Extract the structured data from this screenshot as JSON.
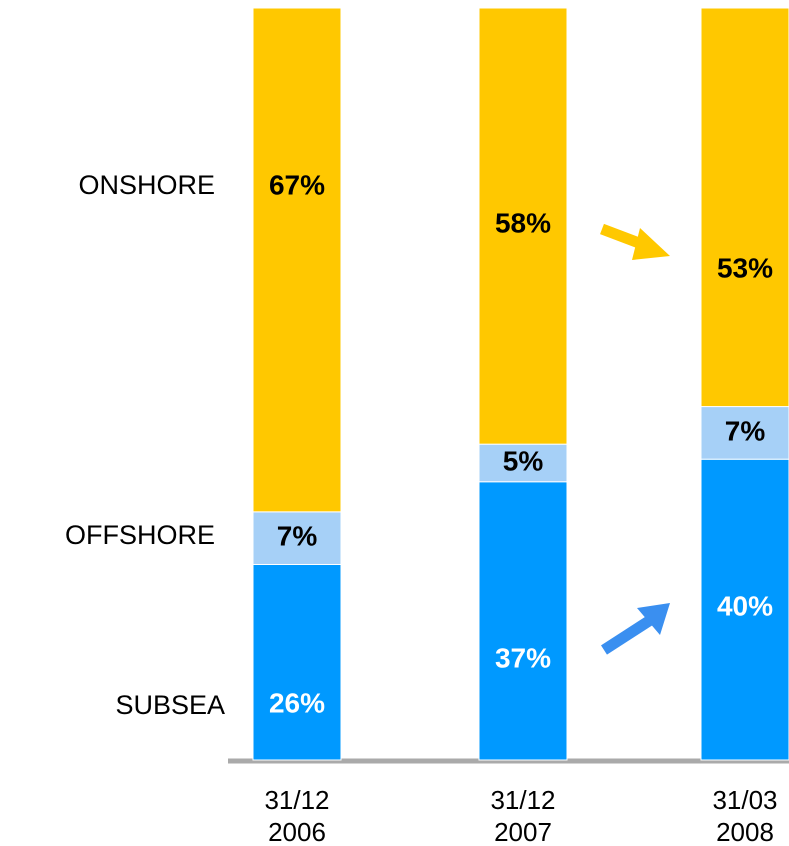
{
  "chart_data": {
    "type": "stacked_bar",
    "categories": [
      "31/12\n2006",
      "31/12\n2007",
      "31/03\n2008"
    ],
    "ylim": [
      0,
      100
    ],
    "series": [
      {
        "name": "SUBSEA",
        "color": "#0099ff",
        "values": [
          26,
          37,
          40
        ],
        "value_labels": [
          "26%",
          "37%",
          "40%"
        ]
      },
      {
        "name": "OFFSHORE",
        "color": "#a6d0f7",
        "values": [
          7,
          5,
          7
        ],
        "value_labels": [
          "7%",
          "5%",
          "7%"
        ]
      },
      {
        "name": "ONSHORE",
        "color": "#ffc800",
        "values": [
          67,
          58,
          53
        ],
        "value_labels": [
          "67%",
          "58%",
          "53%"
        ]
      }
    ]
  }
}
